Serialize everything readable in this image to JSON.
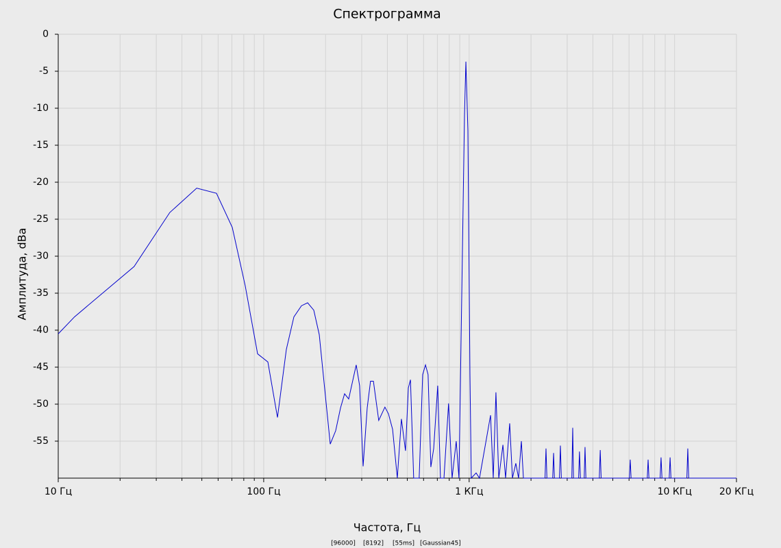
{
  "chart_data": {
    "type": "line",
    "title": "Спектрограмма",
    "x_label": "Частота, Гц",
    "y_label": "Амплитуда, dBa",
    "notes": [
      "[96000]",
      "[8192]",
      "[55ms]",
      "[Gaussian45]"
    ],
    "x_scale": "log",
    "grid": true,
    "xlim": [
      10,
      20000
    ],
    "ylim": [
      -60,
      0
    ],
    "xticks": [
      {
        "value": 10,
        "label": "10 Гц"
      },
      {
        "value": 100,
        "label": "100 Гц"
      },
      {
        "value": 1000,
        "label": "1 КГц"
      },
      {
        "value": 10000,
        "label": "10 КГц"
      },
      {
        "value": 20000,
        "label": "20 КГц"
      }
    ],
    "minor_xticks": [
      20,
      30,
      40,
      50,
      60,
      70,
      80,
      90,
      200,
      300,
      400,
      500,
      600,
      700,
      800,
      900,
      2000,
      3000,
      4000,
      5000,
      6000,
      7000,
      8000,
      9000
    ],
    "yticks": [
      0,
      -5,
      -10,
      -15,
      -20,
      -25,
      -30,
      -35,
      -40,
      -45,
      -50,
      -55
    ],
    "series": [
      {
        "color": "#0000cc",
        "x": [
          10,
          12,
          23.4,
          34.9,
          47.2,
          58.9,
          70.3,
          81.3,
          93.4,
          104.8,
          116.7,
          128.9,
          140.3,
          152.7,
          163.6,
          175.3,
          186.4,
          210.8,
          224,
          236.6,
          247.6,
          259.2,
          282,
          293,
          304.7,
          319,
          331,
          342,
          363,
          389,
          404.7,
          424,
          447,
          468,
          490,
          506,
          518,
          537,
          571,
          594,
          613,
          631,
          651,
          672,
          703,
          725,
          754,
          794,
          826,
          865,
          892,
          920,
          949,
          964,
          986,
          1009,
          1024,
          1081,
          1123,
          1271,
          1310,
          1350,
          1394,
          1460,
          1504,
          1575,
          1624,
          1687,
          1740,
          1795,
          1837,
          1880,
          2340,
          2366,
          2390,
          2550,
          2576,
          2600,
          2750,
          2780,
          2810,
          3160,
          3192,
          3220,
          3410,
          3443,
          3480,
          3630,
          3664,
          3700,
          4300,
          4345,
          4390,
          6020,
          6081,
          6140,
          7360,
          7430,
          7500,
          8500,
          8590,
          8680,
          9410,
          9506,
          9600,
          11470,
          11590,
          11710,
          20000
        ],
        "values": [
          -40.5,
          -38.2,
          -31.4,
          -24.1,
          -20.8,
          -21.5,
          -26.1,
          -34,
          -43.2,
          -44.3,
          -51.8,
          -42.6,
          -38.2,
          -36.7,
          -36.3,
          -37.3,
          -40.6,
          -55.4,
          -53.6,
          -50.5,
          -48.6,
          -49.3,
          -44.7,
          -47.5,
          -58.4,
          -50.5,
          -46.9,
          -46.9,
          -52.2,
          -50.4,
          -51.3,
          -53.4,
          -60,
          -52,
          -56.3,
          -47.8,
          -46.7,
          -60,
          -60,
          -46,
          -44.7,
          -46,
          -58.5,
          -56,
          -47.5,
          -60,
          -60,
          -49.9,
          -60,
          -55,
          -60,
          -35.6,
          -11,
          -3.7,
          -13,
          -46,
          -60,
          -59.3,
          -60,
          -51.5,
          -60,
          -48.4,
          -60,
          -55.5,
          -60,
          -52.6,
          -60,
          -58,
          -60,
          -55,
          -60,
          -60,
          -60,
          -56,
          -60,
          -60,
          -56.6,
          -60,
          -60,
          -55.6,
          -60,
          -60,
          -53.2,
          -60,
          -60,
          -56.4,
          -60,
          -60,
          -55.8,
          -60,
          -60,
          -56.2,
          -60,
          -60,
          -57.5,
          -60,
          -60,
          -57.5,
          -60,
          -60,
          -57.2,
          -60,
          -60,
          -57.2,
          -60,
          -60,
          -56,
          -60,
          -60
        ]
      }
    ]
  }
}
